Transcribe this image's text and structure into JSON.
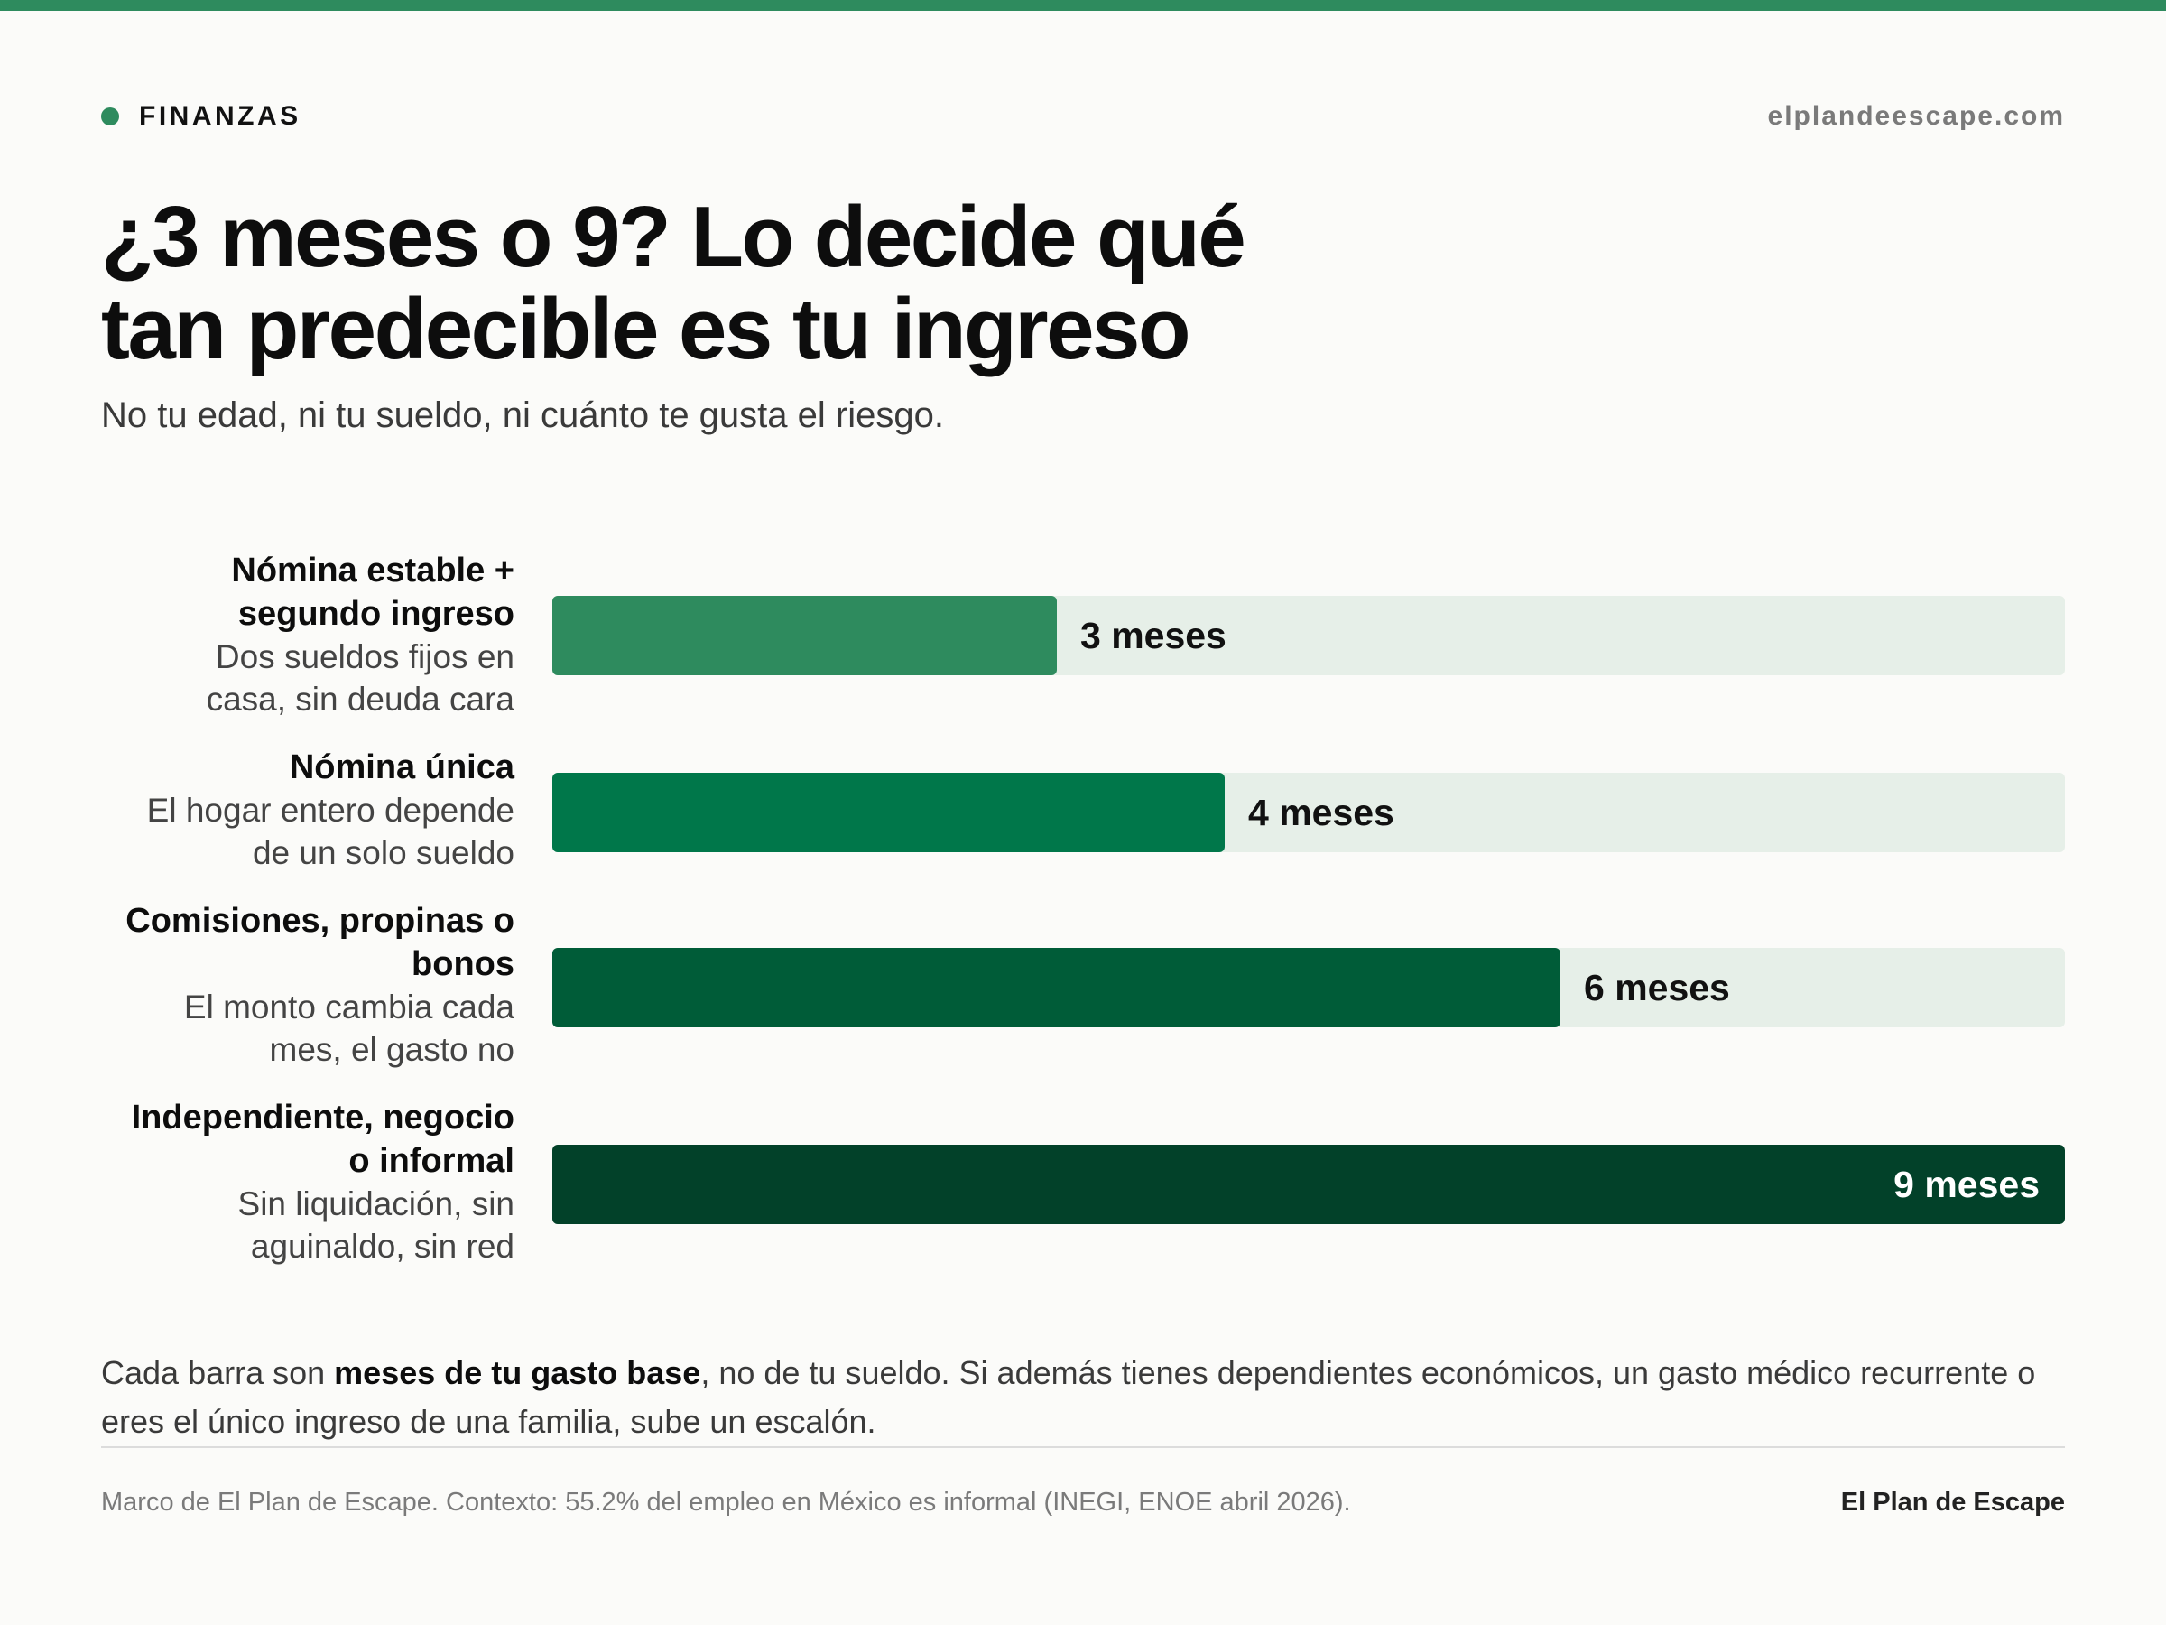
{
  "header": {
    "tag": "FINANZAS",
    "site": "elplandeescape.com"
  },
  "title_line1": "¿3 meses o 9? Lo decide qué",
  "title_line2": "tan predecible es tu ingreso",
  "subtitle": "No tu edad, ni tu sueldo, ni cuánto te gusta el riesgo.",
  "colors": {
    "accent": "#2e8b5e",
    "track": "#e6efe8",
    "bar_1": "#2e8b5e",
    "bar_2": "#00774a",
    "bar_3": "#005c38",
    "bar_4": "#024129"
  },
  "chart_data": {
    "type": "bar",
    "orientation": "horizontal",
    "unit": "meses",
    "xlim": [
      0,
      9
    ],
    "grid": false,
    "categories": [
      "Nómina estable + segundo ingreso",
      "Nómina única",
      "Comisiones, propinas o bonos",
      "Independiente, negocio o informal"
    ],
    "descriptions": [
      "Dos sueldos fijos en casa, sin deuda cara",
      "El hogar entero depende de un solo sueldo",
      "El monto cambia cada mes, el gasto no",
      "Sin liquidación, sin aguinaldo, sin red"
    ],
    "values": [
      3,
      4,
      6,
      9
    ],
    "value_labels": [
      "3 meses",
      "4 meses",
      "6 meses",
      "9 meses"
    ]
  },
  "rows": [
    {
      "name_line1": "Nómina estable +",
      "name_line2": "segundo ingreso",
      "desc_line1": "Dos sueldos fijos en",
      "desc_line2": "casa, sin deuda cara",
      "value_label": "3 meses"
    },
    {
      "name_line1": "Nómina única",
      "name_line2": "",
      "desc_line1": "El hogar entero depende",
      "desc_line2": "de un solo sueldo",
      "value_label": "4 meses"
    },
    {
      "name_line1": "Comisiones, propinas o",
      "name_line2": "bonos",
      "desc_line1": "El monto cambia cada",
      "desc_line2": "mes, el gasto no",
      "value_label": "6 meses"
    },
    {
      "name_line1": "Independiente, negocio",
      "name_line2": "o informal",
      "desc_line1": "Sin liquidación, sin",
      "desc_line2": "aguinaldo, sin red",
      "value_label": "9 meses"
    }
  ],
  "note": {
    "pre": "Cada barra son ",
    "bold": "meses de tu gasto base",
    "post": ", no de tu sueldo. Si además tienes dependientes económicos, un gasto médico recurrente o eres el único ingreso de una familia, sube un escalón."
  },
  "footer": {
    "source": "Marco de El Plan de Escape. Contexto: 55.2% del empleo en México es informal (INEGI, ENOE abril 2026).",
    "brand": "El Plan de Escape"
  }
}
